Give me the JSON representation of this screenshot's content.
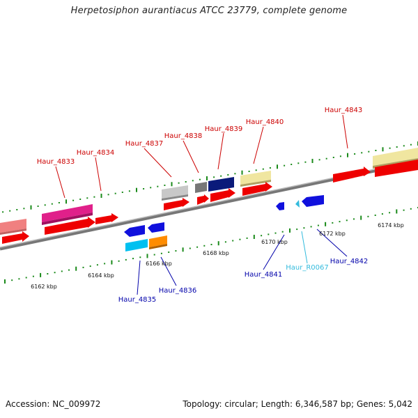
{
  "title": "Herpetosiphon aurantiacus ATCC 23779, complete genome",
  "footer": {
    "accession": "Accession: NC_009972",
    "summary": "Topology: circular; Length: 6,346,587 bp; Genes: 5,042"
  },
  "colors": {
    "forward_label": "#cc0000",
    "reverse_label": "#0000aa",
    "rna_label": "#33bbdd",
    "tick": "#1a8a1a",
    "backbone": "#888888"
  },
  "scale_labels": [
    "6162 kbp",
    "6164 kbp",
    "6166 kbp",
    "6168 kbp",
    "6170 kbp",
    "6172 kbp",
    "6174 kbp"
  ],
  "gene_labels": {
    "haur_4833": "Haur_4833",
    "haur_4834": "Haur_4834",
    "haur_4837": "Haur_4837",
    "haur_4838": "Haur_4838",
    "haur_4839": "Haur_4839",
    "haur_4840": "Haur_4840",
    "haur_4843": "Haur_4843",
    "haur_4835": "Haur_4835",
    "haur_4836": "Haur_4836",
    "haur_4841": "Haur_4841",
    "haur_r0067": "Haur_R0067",
    "haur_4842": "Haur_4842"
  }
}
